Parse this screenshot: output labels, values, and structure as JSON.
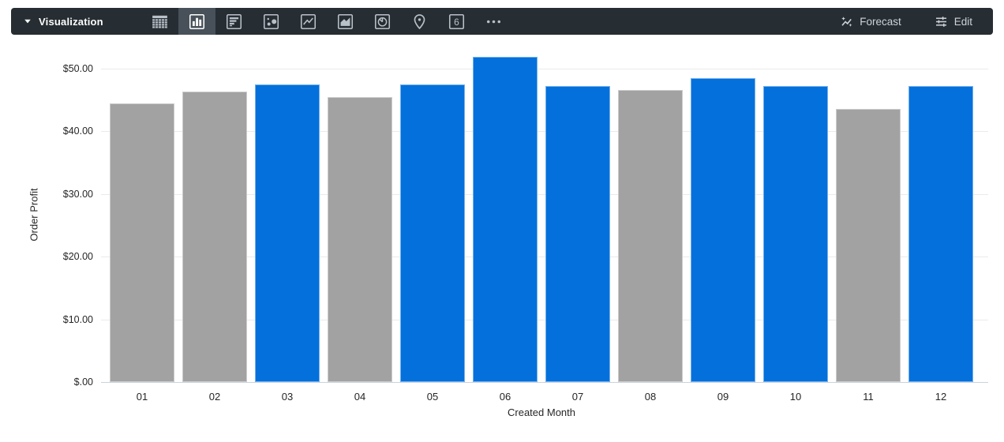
{
  "toolbar": {
    "visualization_label": "Visualization",
    "forecast_label": "Forecast",
    "edit_label": "Edit",
    "chart_types": [
      {
        "name": "table",
        "selected": false
      },
      {
        "name": "column-chart",
        "selected": true
      },
      {
        "name": "bar-chart",
        "selected": false
      },
      {
        "name": "scatter-plot",
        "selected": false
      },
      {
        "name": "line-chart",
        "selected": false
      },
      {
        "name": "area-chart",
        "selected": false
      },
      {
        "name": "pie-chart",
        "selected": false
      },
      {
        "name": "map-pin",
        "selected": false
      },
      {
        "name": "single-value",
        "selected": false
      },
      {
        "name": "more-options",
        "selected": false
      }
    ]
  },
  "colors": {
    "toolbar_bg": "#262D33",
    "toolbar_selected_bg": "#485159",
    "icon_color": "#B9C1C8",
    "bar_highlight": "#0370DC",
    "bar_muted": "#A2A2A2",
    "gridline": "#EBEBEB",
    "axis_line": "#C9D2DB",
    "label_color": "#262626"
  },
  "chart_data": {
    "type": "bar",
    "title": "",
    "xlabel": "Created Month",
    "ylabel": "Order Profit",
    "categories": [
      "01",
      "02",
      "03",
      "04",
      "05",
      "06",
      "07",
      "08",
      "09",
      "10",
      "11",
      "12"
    ],
    "values": [
      44.5,
      46.4,
      47.5,
      45.5,
      47.5,
      51.9,
      47.2,
      46.6,
      48.5,
      47.2,
      43.6,
      47.2
    ],
    "bar_styles": [
      "muted",
      "muted",
      "highlight",
      "muted",
      "highlight",
      "highlight",
      "highlight",
      "muted",
      "highlight",
      "highlight",
      "muted",
      "highlight"
    ],
    "bar_palette": {
      "highlight": "#0370DC",
      "muted": "#A2A2A2"
    },
    "yticks": [
      0,
      10,
      20,
      30,
      40,
      50
    ],
    "ytick_labels": [
      "$.00",
      "$10.00",
      "$20.00",
      "$30.00",
      "$40.00",
      "$50.00"
    ],
    "ylim": [
      0,
      53.4
    ],
    "grid": true,
    "legend": "none"
  }
}
